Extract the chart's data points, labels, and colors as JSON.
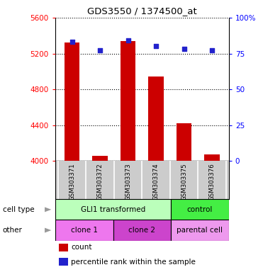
{
  "title": "GDS3550 / 1374500_at",
  "samples": [
    "GSM303371",
    "GSM303372",
    "GSM303373",
    "GSM303374",
    "GSM303375",
    "GSM303376"
  ],
  "bar_values": [
    5320,
    4060,
    5340,
    4940,
    4420,
    4070
  ],
  "percentile_values": [
    83,
    77,
    84,
    80,
    78,
    77
  ],
  "bar_bottom": 4000,
  "ylim_left": [
    4000,
    5600
  ],
  "ylim_right": [
    0,
    100
  ],
  "yticks_left": [
    4000,
    4400,
    4800,
    5200,
    5600
  ],
  "yticks_right": [
    0,
    25,
    50,
    75,
    100
  ],
  "bar_color": "#cc0000",
  "percentile_color": "#2222cc",
  "cell_type_groups": [
    {
      "label": "GLI1 transformed",
      "start": 0,
      "end": 4,
      "color": "#bbffbb"
    },
    {
      "label": "control",
      "start": 4,
      "end": 6,
      "color": "#44ee44"
    }
  ],
  "other_groups": [
    {
      "label": "clone 1",
      "start": 0,
      "end": 2,
      "color": "#ee77ee"
    },
    {
      "label": "clone 2",
      "start": 2,
      "end": 4,
      "color": "#cc44cc"
    },
    {
      "label": "parental cell",
      "start": 4,
      "end": 6,
      "color": "#ee99ee"
    }
  ],
  "cell_type_label": "cell type",
  "other_label": "other",
  "legend_count_label": "count",
  "legend_percentile_label": "percentile rank within the sample",
  "sample_bg_color": "#cccccc",
  "background_color": "#ffffff",
  "bar_width": 0.55
}
